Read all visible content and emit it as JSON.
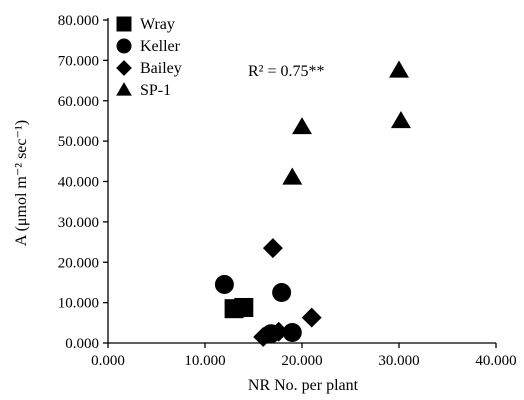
{
  "chart_data": {
    "type": "scatter",
    "xlabel": "NR No. per plant",
    "ylabel": "A (μmol m⁻² sec⁻¹)",
    "xlim": [
      0,
      40
    ],
    "ylim": [
      0,
      80
    ],
    "x_ticks": [
      "0.000",
      "10.000",
      "20.000",
      "30.000",
      "40.000"
    ],
    "y_ticks": [
      "0.000",
      "10.000",
      "20.000",
      "30.000",
      "40.000",
      "50.000",
      "60.000",
      "70.000",
      "80.000"
    ],
    "grid": false,
    "legend_position": "top-left",
    "annotation": "R² = 0.75**",
    "series": [
      {
        "name": "Wray",
        "marker": "square",
        "points": [
          {
            "x": 13.0,
            "y": 8.5
          },
          {
            "x": 14.0,
            "y": 8.8
          }
        ]
      },
      {
        "name": "Keller",
        "marker": "circle",
        "points": [
          {
            "x": 12.0,
            "y": 14.5
          },
          {
            "x": 16.8,
            "y": 2.3
          },
          {
            "x": 17.9,
            "y": 12.5
          },
          {
            "x": 19.0,
            "y": 2.6
          }
        ]
      },
      {
        "name": "Bailey",
        "marker": "diamond",
        "points": [
          {
            "x": 16.0,
            "y": 1.5
          },
          {
            "x": 17.0,
            "y": 23.5
          },
          {
            "x": 17.6,
            "y": 2.8
          },
          {
            "x": 21.0,
            "y": 6.3
          }
        ]
      },
      {
        "name": "SP-1",
        "marker": "triangle",
        "points": [
          {
            "x": 19.0,
            "y": 41.0
          },
          {
            "x": 20.0,
            "y": 53.5
          },
          {
            "x": 30.0,
            "y": 67.5
          },
          {
            "x": 30.2,
            "y": 55.0
          }
        ]
      }
    ]
  }
}
